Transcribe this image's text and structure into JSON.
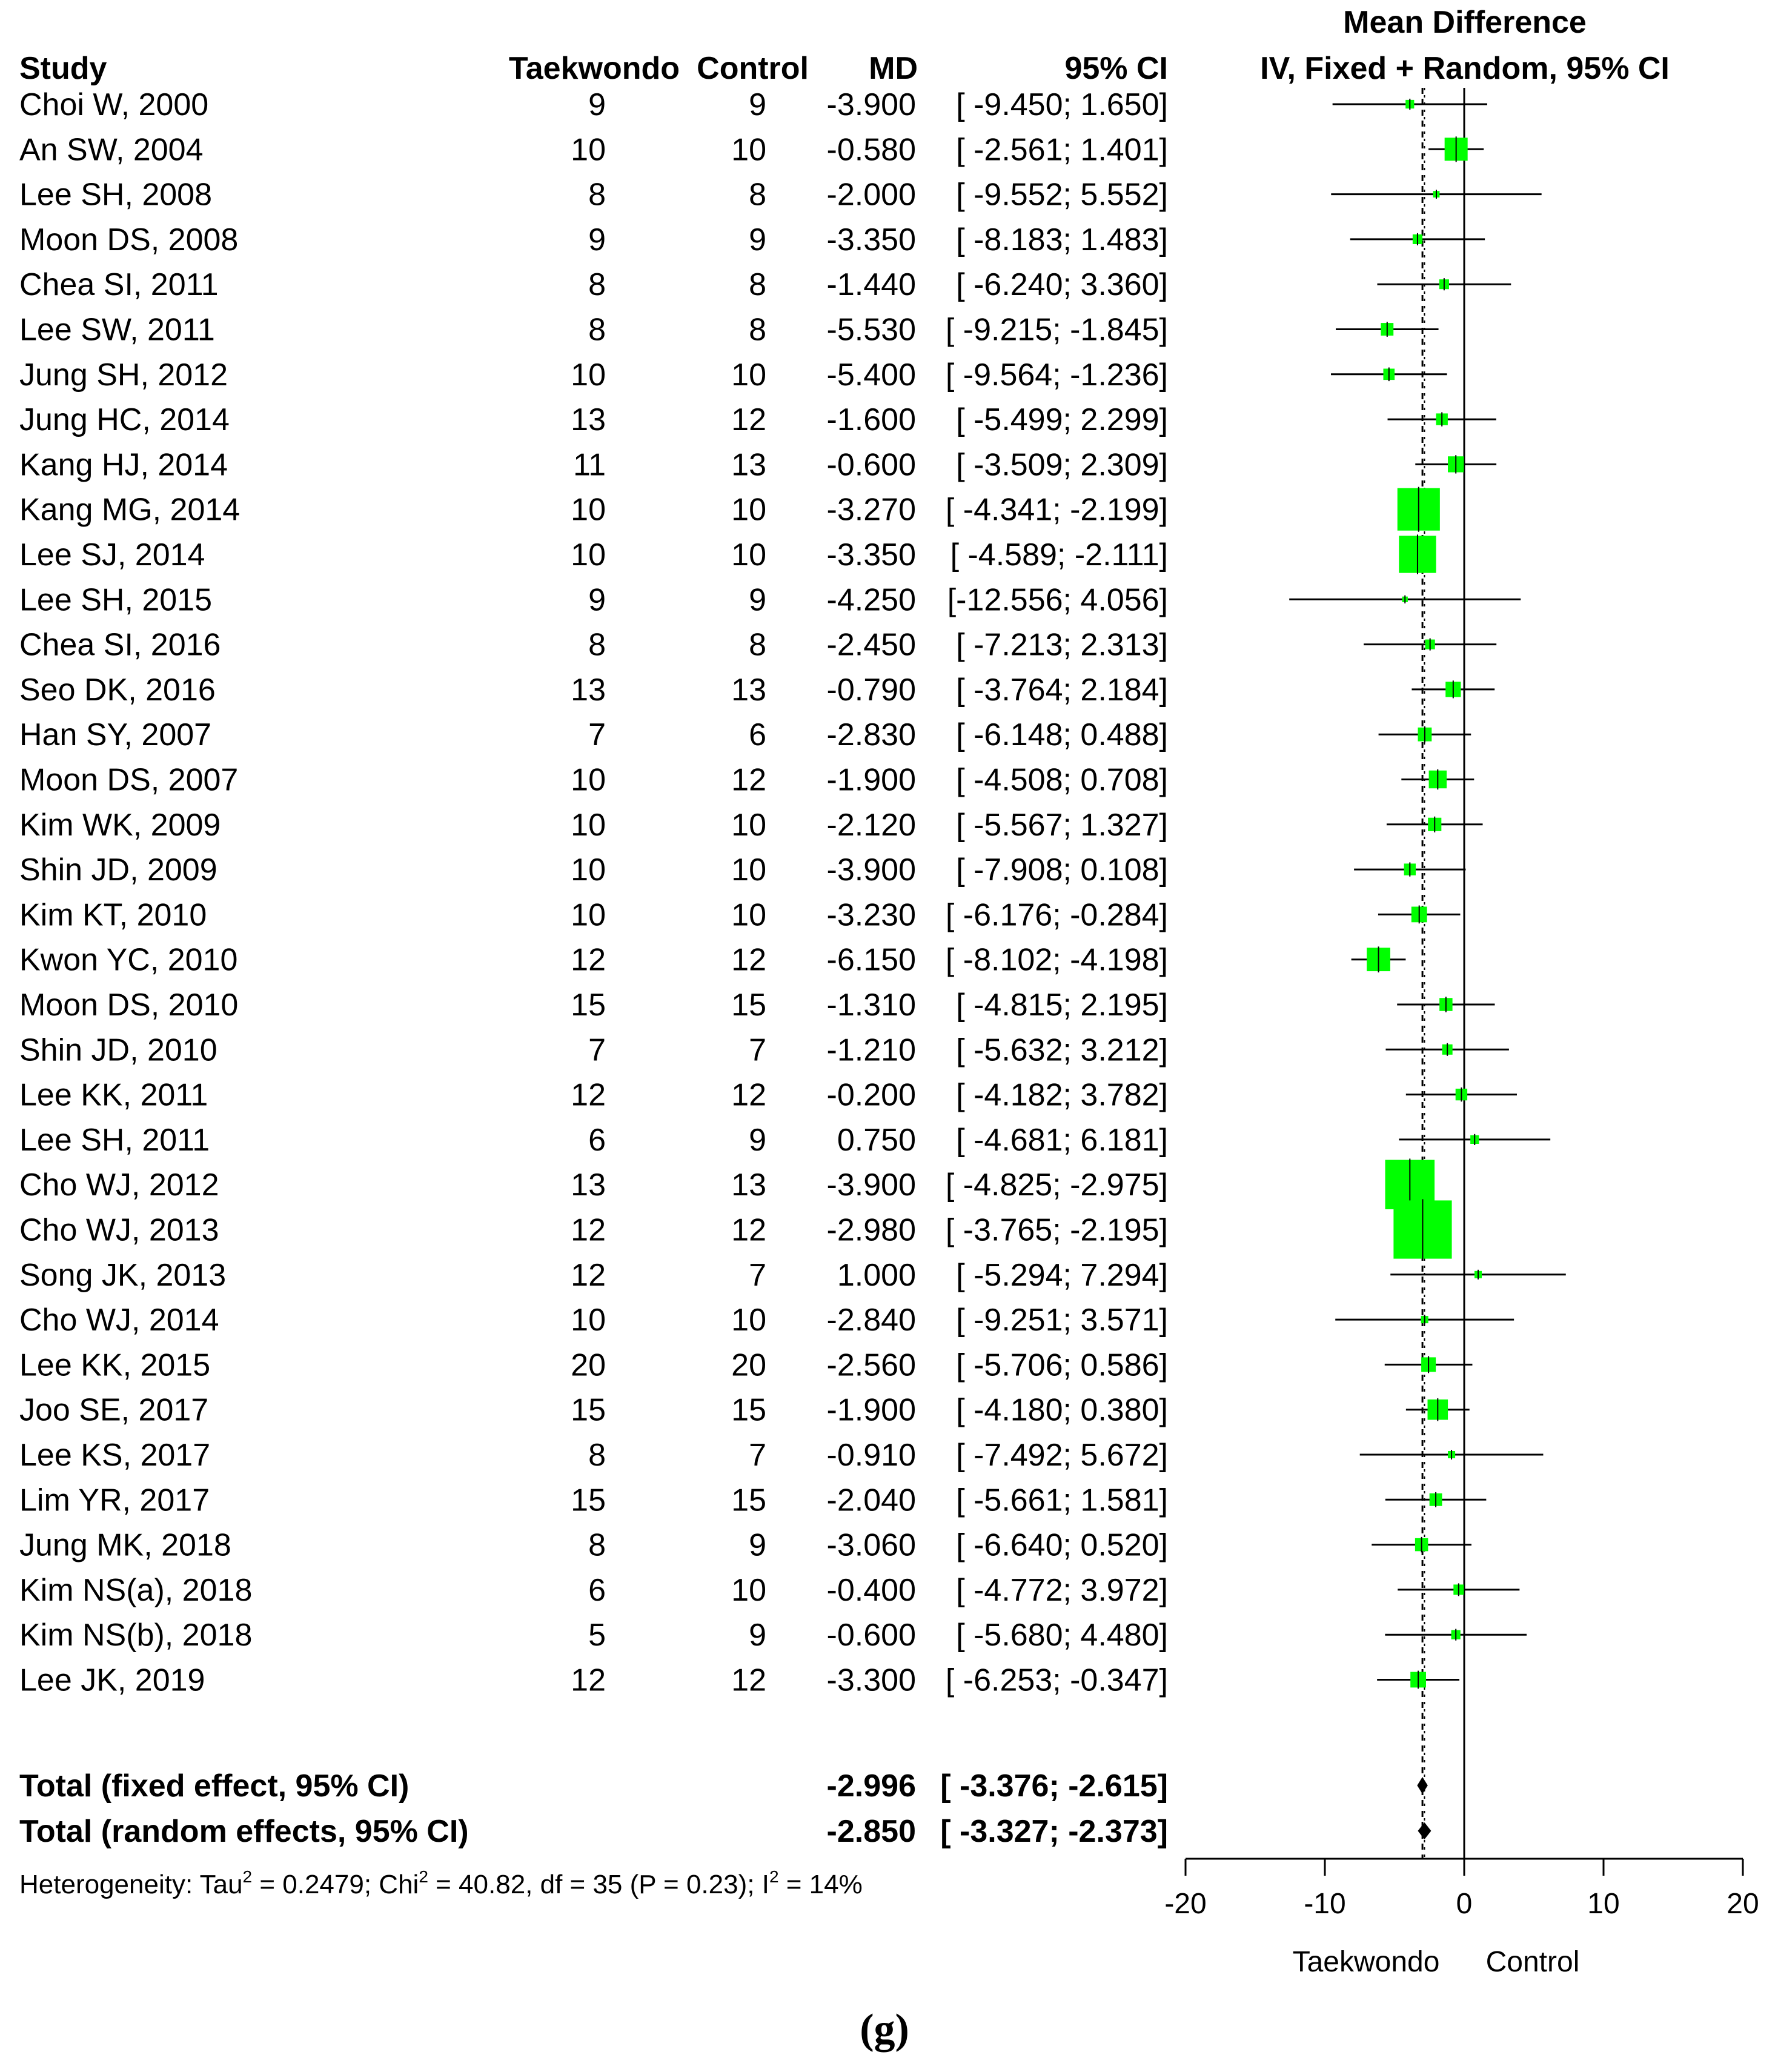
{
  "chart_data": {
    "type": "forest",
    "title": "Mean Difference",
    "subtitle": "IV, Fixed + Random, 95% CI",
    "columns": {
      "study": "Study",
      "treatment": "Taekwondo",
      "control": "Control",
      "md": "MD",
      "ci": "95% CI"
    },
    "studies": [
      {
        "study": "Choi W, 2000",
        "treatment": "9",
        "control": "9",
        "md": "-3.900",
        "ci": "[ -9.450;  1.650]",
        "mean": -3.9,
        "lower": -9.45,
        "upper": 1.65,
        "weight": 0.7
      },
      {
        "study": "An SW, 2004",
        "treatment": "10",
        "control": "10",
        "md": "-0.580",
        "ci": "[ -2.561;  1.401]",
        "mean": -0.58,
        "lower": -2.561,
        "upper": 1.401,
        "weight": 5.0
      },
      {
        "study": "Lee SH, 2008",
        "treatment": "8",
        "control": "8",
        "md": "-2.000",
        "ci": "[ -9.552;  5.552]",
        "mean": -2.0,
        "lower": -9.552,
        "upper": 5.552,
        "weight": 0.4
      },
      {
        "study": "Moon DS, 2008",
        "treatment": "9",
        "control": "9",
        "md": "-3.350",
        "ci": "[ -8.183;  1.483]",
        "mean": -3.35,
        "lower": -8.183,
        "upper": 1.483,
        "weight": 0.9
      },
      {
        "study": "Chea SI, 2011",
        "treatment": "8",
        "control": "8",
        "md": "-1.440",
        "ci": "[ -6.240;  3.360]",
        "mean": -1.44,
        "lower": -6.24,
        "upper": 3.36,
        "weight": 0.9
      },
      {
        "study": "Lee SW, 2011",
        "treatment": "8",
        "control": "8",
        "md": "-5.530",
        "ci": "[ -9.215; -1.845]",
        "mean": -5.53,
        "lower": -9.215,
        "upper": -1.845,
        "weight": 1.5
      },
      {
        "study": "Jung SH, 2012",
        "treatment": "10",
        "control": "10",
        "md": "-5.400",
        "ci": "[ -9.564; -1.236]",
        "mean": -5.4,
        "lower": -9.564,
        "upper": -1.236,
        "weight": 1.2
      },
      {
        "study": "Jung HC, 2014",
        "treatment": "13",
        "control": "12",
        "md": "-1.600",
        "ci": "[ -5.499;  2.299]",
        "mean": -1.6,
        "lower": -5.499,
        "upper": 2.299,
        "weight": 1.3
      },
      {
        "study": "Kang HJ, 2014",
        "treatment": "11",
        "control": "13",
        "md": "-0.600",
        "ci": "[ -3.509;  2.309]",
        "mean": -0.6,
        "lower": -3.509,
        "upper": 2.309,
        "weight": 2.4
      },
      {
        "study": "Kang MG, 2014",
        "treatment": "10",
        "control": "10",
        "md": "-3.270",
        "ci": "[ -4.341; -2.199]",
        "mean": -3.27,
        "lower": -4.341,
        "upper": -2.199,
        "weight": 17.0
      },
      {
        "study": "Lee SJ, 2014",
        "treatment": "10",
        "control": "10",
        "md": "-3.350",
        "ci": "[ -4.589; -2.111]",
        "mean": -3.35,
        "lower": -4.589,
        "upper": -2.111,
        "weight": 13.0
      },
      {
        "study": "Lee SH, 2015",
        "treatment": "9",
        "control": "9",
        "md": "-4.250",
        "ci": "[-12.556;  4.056]",
        "mean": -4.25,
        "lower": -12.556,
        "upper": 4.056,
        "weight": 0.3
      },
      {
        "study": "Chea SI, 2016",
        "treatment": "8",
        "control": "8",
        "md": "-2.450",
        "ci": "[ -7.213;  2.313]",
        "mean": -2.45,
        "lower": -7.213,
        "upper": 2.313,
        "weight": 0.9
      },
      {
        "study": "Seo DK, 2016",
        "treatment": "13",
        "control": "13",
        "md": "-0.790",
        "ci": "[ -3.764;  2.184]",
        "mean": -0.79,
        "lower": -3.764,
        "upper": 2.184,
        "weight": 2.2
      },
      {
        "study": "Han SY, 2007",
        "treatment": "7",
        "control": "6",
        "md": "-2.830",
        "ci": "[ -6.148;  0.488]",
        "mean": -2.83,
        "lower": -6.148,
        "upper": 0.488,
        "weight": 1.8
      },
      {
        "study": "Moon DS, 2007",
        "treatment": "10",
        "control": "12",
        "md": "-1.900",
        "ci": "[ -4.508;  0.708]",
        "mean": -1.9,
        "lower": -4.508,
        "upper": 0.708,
        "weight": 3.0
      },
      {
        "study": "Kim WK, 2009",
        "treatment": "10",
        "control": "10",
        "md": "-2.120",
        "ci": "[ -5.567;  1.327]",
        "mean": -2.12,
        "lower": -5.567,
        "upper": 1.327,
        "weight": 1.7
      },
      {
        "study": "Shin JD, 2009",
        "treatment": "10",
        "control": "10",
        "md": "-3.900",
        "ci": "[ -7.908;  0.108]",
        "mean": -3.9,
        "lower": -7.908,
        "upper": 0.108,
        "weight": 1.3
      },
      {
        "study": "Kim KT, 2010",
        "treatment": "10",
        "control": "10",
        "md": "-3.230",
        "ci": "[ -6.176; -0.284]",
        "mean": -3.23,
        "lower": -6.176,
        "upper": -0.284,
        "weight": 2.3
      },
      {
        "study": "Kwon YC, 2010",
        "treatment": "12",
        "control": "12",
        "md": "-6.150",
        "ci": "[ -8.102; -4.198]",
        "mean": -6.15,
        "lower": -8.102,
        "upper": -4.198,
        "weight": 5.2
      },
      {
        "study": "Moon DS, 2010",
        "treatment": "15",
        "control": "15",
        "md": "-1.310",
        "ci": "[ -4.815;  2.195]",
        "mean": -1.31,
        "lower": -4.815,
        "upper": 2.195,
        "weight": 1.6
      },
      {
        "study": "Shin JD, 2010",
        "treatment": "7",
        "control": "7",
        "md": "-1.210",
        "ci": "[ -5.632;  3.212]",
        "mean": -1.21,
        "lower": -5.632,
        "upper": 3.212,
        "weight": 1.0
      },
      {
        "study": "Lee KK, 2011",
        "treatment": "12",
        "control": "12",
        "md": "-0.200",
        "ci": "[ -4.182;  3.782]",
        "mean": -0.2,
        "lower": -4.182,
        "upper": 3.782,
        "weight": 1.3
      },
      {
        "study": "Lee SH, 2011",
        "treatment": "6",
        "control": "9",
        "md": "0.750",
        "ci": "[ -4.681;  6.181]",
        "mean": 0.75,
        "lower": -4.681,
        "upper": 6.181,
        "weight": 0.7
      },
      {
        "study": "Cho WJ, 2012",
        "treatment": "13",
        "control": "13",
        "md": "-3.900",
        "ci": "[ -4.825; -2.975]",
        "mean": -3.9,
        "lower": -4.825,
        "upper": -2.975,
        "weight": 23.0
      },
      {
        "study": "Cho WJ, 2013",
        "treatment": "12",
        "control": "12",
        "md": "-2.980",
        "ci": "[ -3.765; -2.195]",
        "mean": -2.98,
        "lower": -3.765,
        "upper": -2.195,
        "weight": 32.0
      },
      {
        "study": "Song JK, 2013",
        "treatment": "12",
        "control": "7",
        "md": "1.000",
        "ci": "[ -5.294;  7.294]",
        "mean": 1.0,
        "lower": -5.294,
        "upper": 7.294,
        "weight": 0.5
      },
      {
        "study": "Cho WJ, 2014",
        "treatment": "10",
        "control": "10",
        "md": "-2.840",
        "ci": "[ -9.251;  3.571]",
        "mean": -2.84,
        "lower": -9.251,
        "upper": 3.571,
        "weight": 0.5
      },
      {
        "study": "Lee KK, 2015",
        "treatment": "20",
        "control": "20",
        "md": "-2.560",
        "ci": "[ -5.706;  0.586]",
        "mean": -2.56,
        "lower": -5.706,
        "upper": 0.586,
        "weight": 2.0
      },
      {
        "study": "Joo SE, 2017",
        "treatment": "15",
        "control": "15",
        "md": "-1.900",
        "ci": "[ -4.180;  0.380]",
        "mean": -1.9,
        "lower": -4.18,
        "upper": 0.38,
        "weight": 3.9
      },
      {
        "study": "Lee KS, 2017",
        "treatment": "8",
        "control": "7",
        "md": "-0.910",
        "ci": "[ -7.492;  5.672]",
        "mean": -0.91,
        "lower": -7.492,
        "upper": 5.672,
        "weight": 0.5
      },
      {
        "study": "Lim YR, 2017",
        "treatment": "15",
        "control": "15",
        "md": "-2.040",
        "ci": "[ -5.661;  1.581]",
        "mean": -2.04,
        "lower": -5.661,
        "upper": 1.581,
        "weight": 1.5
      },
      {
        "study": "Jung MK, 2018",
        "treatment": "8",
        "control": "9",
        "md": "-3.060",
        "ci": "[ -6.640;  0.520]",
        "mean": -3.06,
        "lower": -6.64,
        "upper": 0.52,
        "weight": 1.6
      },
      {
        "study": "Kim NS(a), 2018",
        "treatment": "6",
        "control": "10",
        "md": "-0.400",
        "ci": "[ -4.772;  3.972]",
        "mean": -0.4,
        "lower": -4.772,
        "upper": 3.972,
        "weight": 1.0
      },
      {
        "study": "Kim NS(b), 2018",
        "treatment": "5",
        "control": "9",
        "md": "-0.600",
        "ci": "[ -5.680;  4.480]",
        "mean": -0.6,
        "lower": -5.68,
        "upper": 4.48,
        "weight": 0.8
      },
      {
        "study": "Lee JK, 2019",
        "treatment": "12",
        "control": "12",
        "md": "-3.300",
        "ci": "[ -6.253; -0.347]",
        "mean": -3.3,
        "lower": -6.253,
        "upper": -0.347,
        "weight": 2.3
      }
    ],
    "totals": [
      {
        "label": "Total (fixed effect, 95% CI)",
        "md": "-2.996",
        "ci": "[ -3.376; -2.615]",
        "mean": -2.996,
        "lower": -3.376,
        "upper": -2.615
      },
      {
        "label": "Total (random effects, 95% CI)",
        "md": "-2.850",
        "ci": "[ -3.327; -2.373]",
        "mean": -2.85,
        "lower": -3.327,
        "upper": -2.373
      }
    ],
    "heterogeneity": {
      "prefix": "Heterogeneity: Tau",
      "tau2_value": " = 0.2479; Chi",
      "chi2_value": " = 40.82, df = 35 (P = 0.23); I",
      "i2_value": " = 14%",
      "superscript": "2"
    },
    "x_axis": {
      "range": [
        -20,
        20
      ],
      "ticks": [
        "-20",
        "-10",
        "0",
        "10",
        "20"
      ],
      "tick_values": [
        -20,
        -10,
        0,
        10,
        20
      ]
    },
    "favours": {
      "left": "Taekwondo",
      "right": "Control"
    },
    "caption": "(g)",
    "colors": {
      "square": "#00ff00",
      "line": "#000000",
      "reference": "#000000"
    }
  }
}
